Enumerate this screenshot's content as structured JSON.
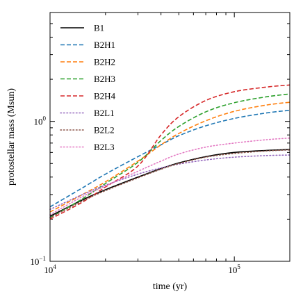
{
  "chart_data": {
    "type": "line",
    "xlabel": "time (yr)",
    "ylabel": "protostellar mass (Msun)",
    "x_scale": "log",
    "y_scale": "log",
    "xlim": [
      10000,
      200000
    ],
    "ylim": [
      0.1,
      6.0
    ],
    "x_major_ticks": [
      {
        "value": 10000,
        "base": "10",
        "exp": "4"
      },
      {
        "value": 100000,
        "base": "10",
        "exp": "5"
      }
    ],
    "y_major_ticks": [
      {
        "value": 0.1,
        "base": "10",
        "exp": "−1"
      },
      {
        "value": 1,
        "base": "10",
        "exp": "0"
      }
    ],
    "legend_position": "top-left",
    "grid": false,
    "x": [
      10000,
      15000,
      20000,
      30000,
      40000,
      50000,
      70000,
      100000,
      150000,
      200000
    ],
    "series": [
      {
        "name": "B1",
        "color": "#000000",
        "dash": "solid",
        "values": [
          0.21,
          0.275,
          0.325,
          0.4,
          0.46,
          0.505,
          0.56,
          0.6,
          0.62,
          0.63
        ]
      },
      {
        "name": "B2H1",
        "color": "#1f77b4",
        "dash": "dashed",
        "values": [
          0.245,
          0.335,
          0.42,
          0.56,
          0.68,
          0.79,
          0.93,
          1.05,
          1.15,
          1.2
        ]
      },
      {
        "name": "B2H2",
        "color": "#ff7f0e",
        "dash": "dashed",
        "values": [
          0.225,
          0.3,
          0.37,
          0.52,
          0.68,
          0.82,
          1.01,
          1.18,
          1.31,
          1.37
        ]
      },
      {
        "name": "B2H3",
        "color": "#2ca02c",
        "dash": "dashed",
        "values": [
          0.205,
          0.28,
          0.36,
          0.51,
          0.73,
          0.92,
          1.17,
          1.36,
          1.5,
          1.57
        ]
      },
      {
        "name": "B2H4",
        "color": "#d62728",
        "dash": "dashed",
        "values": [
          0.2,
          0.265,
          0.34,
          0.48,
          0.8,
          1.08,
          1.41,
          1.63,
          1.76,
          1.82
        ]
      },
      {
        "name": "B2L1",
        "color": "#9467bd",
        "dash": "dotted",
        "values": [
          0.235,
          0.3,
          0.35,
          0.42,
          0.465,
          0.495,
          0.53,
          0.555,
          0.57,
          0.575
        ]
      },
      {
        "name": "B2L2",
        "color": "#8c564b",
        "dash": "dotted",
        "values": [
          0.205,
          0.27,
          0.32,
          0.395,
          0.455,
          0.5,
          0.555,
          0.59,
          0.615,
          0.625
        ]
      },
      {
        "name": "B2L3",
        "color": "#e377c2",
        "dash": "dotted",
        "values": [
          0.215,
          0.29,
          0.345,
          0.44,
          0.52,
          0.585,
          0.655,
          0.7,
          0.74,
          0.76
        ]
      }
    ]
  }
}
